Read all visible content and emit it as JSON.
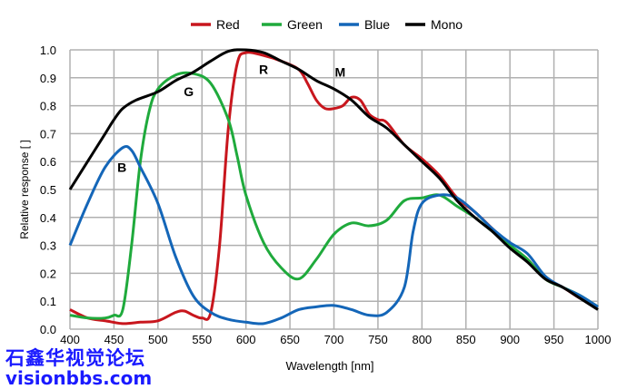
{
  "chart_data": {
    "type": "line",
    "title": "",
    "xlabel": "Wavelength [nm]",
    "ylabel": "Relative response [ ]",
    "xlim": [
      400,
      1000
    ],
    "ylim": [
      0,
      1.0
    ],
    "xticks": [
      400,
      450,
      500,
      550,
      600,
      650,
      700,
      750,
      800,
      850,
      900,
      950,
      1000
    ],
    "yticks": [
      "0.0",
      "0.1",
      "0.2",
      "0.3",
      "0.4",
      "0.5",
      "0.6",
      "0.7",
      "0.8",
      "0.9",
      "1.0"
    ],
    "grid": true,
    "legend_position": "top-center",
    "series": [
      {
        "name": "Red",
        "color": "#c8161d",
        "x": [
          400,
          420,
          440,
          460,
          480,
          500,
          520,
          530,
          540,
          550,
          560,
          570,
          580,
          590,
          600,
          620,
          640,
          660,
          670,
          680,
          690,
          700,
          710,
          720,
          730,
          740,
          750,
          760,
          780,
          800,
          820,
          840,
          860,
          880,
          900,
          920,
          940,
          960,
          980,
          1000
        ],
        "y": [
          0.07,
          0.04,
          0.03,
          0.02,
          0.025,
          0.03,
          0.06,
          0.065,
          0.05,
          0.04,
          0.06,
          0.3,
          0.72,
          0.95,
          0.99,
          0.98,
          0.96,
          0.93,
          0.88,
          0.82,
          0.79,
          0.79,
          0.8,
          0.83,
          0.82,
          0.77,
          0.75,
          0.74,
          0.66,
          0.61,
          0.55,
          0.47,
          0.42,
          0.36,
          0.3,
          0.25,
          0.18,
          0.15,
          0.11,
          0.08
        ]
      },
      {
        "name": "Green",
        "color": "#1faa3c",
        "x": [
          400,
          420,
          440,
          450,
          460,
          470,
          480,
          490,
          500,
          520,
          540,
          560,
          580,
          590,
          600,
          620,
          640,
          660,
          680,
          700,
          720,
          740,
          760,
          780,
          800,
          820,
          840,
          860,
          880,
          900,
          920,
          940,
          960,
          980,
          1000
        ],
        "y": [
          0.05,
          0.04,
          0.04,
          0.05,
          0.07,
          0.3,
          0.6,
          0.78,
          0.86,
          0.91,
          0.915,
          0.88,
          0.75,
          0.62,
          0.48,
          0.31,
          0.22,
          0.18,
          0.25,
          0.34,
          0.38,
          0.37,
          0.39,
          0.46,
          0.47,
          0.48,
          0.44,
          0.4,
          0.35,
          0.3,
          0.25,
          0.18,
          0.15,
          0.12,
          0.08
        ]
      },
      {
        "name": "Blue",
        "color": "#1466b8",
        "x": [
          400,
          420,
          440,
          460,
          470,
          480,
          500,
          520,
          540,
          560,
          580,
          600,
          620,
          640,
          660,
          680,
          700,
          720,
          740,
          760,
          780,
          790,
          800,
          820,
          840,
          860,
          880,
          900,
          920,
          940,
          960,
          980,
          1000
        ],
        "y": [
          0.3,
          0.45,
          0.58,
          0.65,
          0.64,
          0.58,
          0.45,
          0.26,
          0.12,
          0.06,
          0.035,
          0.025,
          0.02,
          0.04,
          0.07,
          0.08,
          0.085,
          0.07,
          0.05,
          0.06,
          0.15,
          0.35,
          0.45,
          0.48,
          0.47,
          0.42,
          0.36,
          0.31,
          0.27,
          0.19,
          0.15,
          0.12,
          0.08
        ]
      },
      {
        "name": "Mono",
        "color": "#000000",
        "x": [
          400,
          420,
          440,
          450,
          460,
          475,
          500,
          520,
          540,
          560,
          580,
          600,
          620,
          640,
          660,
          680,
          700,
          720,
          740,
          760,
          780,
          800,
          820,
          840,
          860,
          880,
          900,
          920,
          940,
          960,
          980,
          1000
        ],
        "y": [
          0.5,
          0.6,
          0.7,
          0.75,
          0.79,
          0.82,
          0.85,
          0.89,
          0.92,
          0.96,
          0.995,
          1.0,
          0.99,
          0.96,
          0.93,
          0.89,
          0.86,
          0.82,
          0.76,
          0.72,
          0.66,
          0.6,
          0.54,
          0.46,
          0.4,
          0.35,
          0.29,
          0.24,
          0.18,
          0.15,
          0.11,
          0.07
        ]
      }
    ],
    "annotations": [
      {
        "text": "B",
        "x": 459,
        "y": 0.58
      },
      {
        "text": "G",
        "x": 535,
        "y": 0.85
      },
      {
        "text": "R",
        "x": 620,
        "y": 0.93
      },
      {
        "text": "M",
        "x": 707,
        "y": 0.92
      }
    ]
  },
  "watermark": {
    "line1": "石鑫华视觉论坛",
    "line2": "visionbbs.com"
  }
}
